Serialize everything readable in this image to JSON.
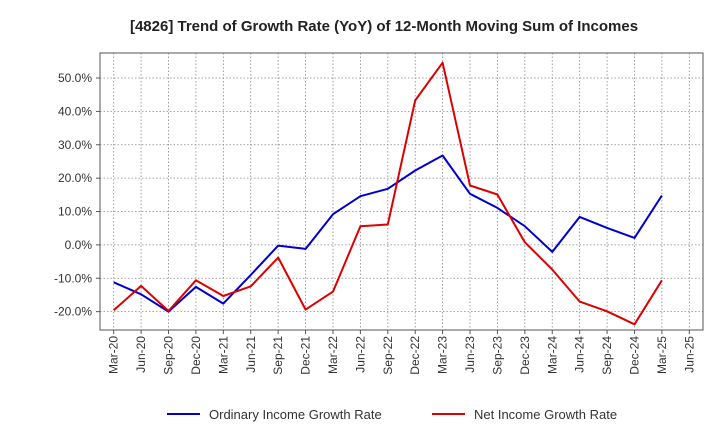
{
  "chart_data": {
    "type": "line",
    "title": "[4826]  Trend of Growth Rate (YoY) of 12-Month Moving Sum of Incomes",
    "xlabel": "",
    "ylabel": "",
    "categories": [
      "Mar-20",
      "Jun-20",
      "Sep-20",
      "Dec-20",
      "Mar-21",
      "Jun-21",
      "Sep-21",
      "Dec-21",
      "Mar-22",
      "Jun-22",
      "Sep-22",
      "Dec-22",
      "Mar-23",
      "Jun-23",
      "Sep-23",
      "Dec-23",
      "Mar-24",
      "Jun-24",
      "Sep-24",
      "Dec-24",
      "Mar-25",
      "Jun-25"
    ],
    "ylim": [
      -25.5,
      57.5
    ],
    "yticks": [
      -20,
      -10,
      0,
      10,
      20,
      30,
      40,
      50
    ],
    "ytick_labels": [
      "-20.0%",
      "-10.0%",
      "0.0%",
      "10.0%",
      "20.0%",
      "30.0%",
      "40.0%",
      "50.0%"
    ],
    "grid": true,
    "legend_position": "bottom",
    "series": [
      {
        "name": "Ordinary Income Growth Rate",
        "color": "#0000cc",
        "values": [
          -11.2,
          -14.8,
          -20.0,
          -12.6,
          -17.6,
          -9.0,
          -0.2,
          -1.2,
          9.2,
          14.6,
          16.8,
          22.3,
          26.8,
          15.3,
          11.1,
          5.6,
          -2.1,
          8.4,
          5.1,
          2.1,
          14.8,
          null
        ]
      },
      {
        "name": "Net Income Growth Rate",
        "color": "#dd0000",
        "values": [
          -19.6,
          -12.3,
          -19.8,
          -10.6,
          -15.3,
          -12.4,
          -3.8,
          -19.4,
          -14.0,
          5.6,
          6.1,
          43.3,
          54.6,
          17.8,
          15.1,
          0.8,
          -7.4,
          -17.0,
          -19.9,
          -23.8,
          -10.6,
          null
        ]
      }
    ]
  }
}
